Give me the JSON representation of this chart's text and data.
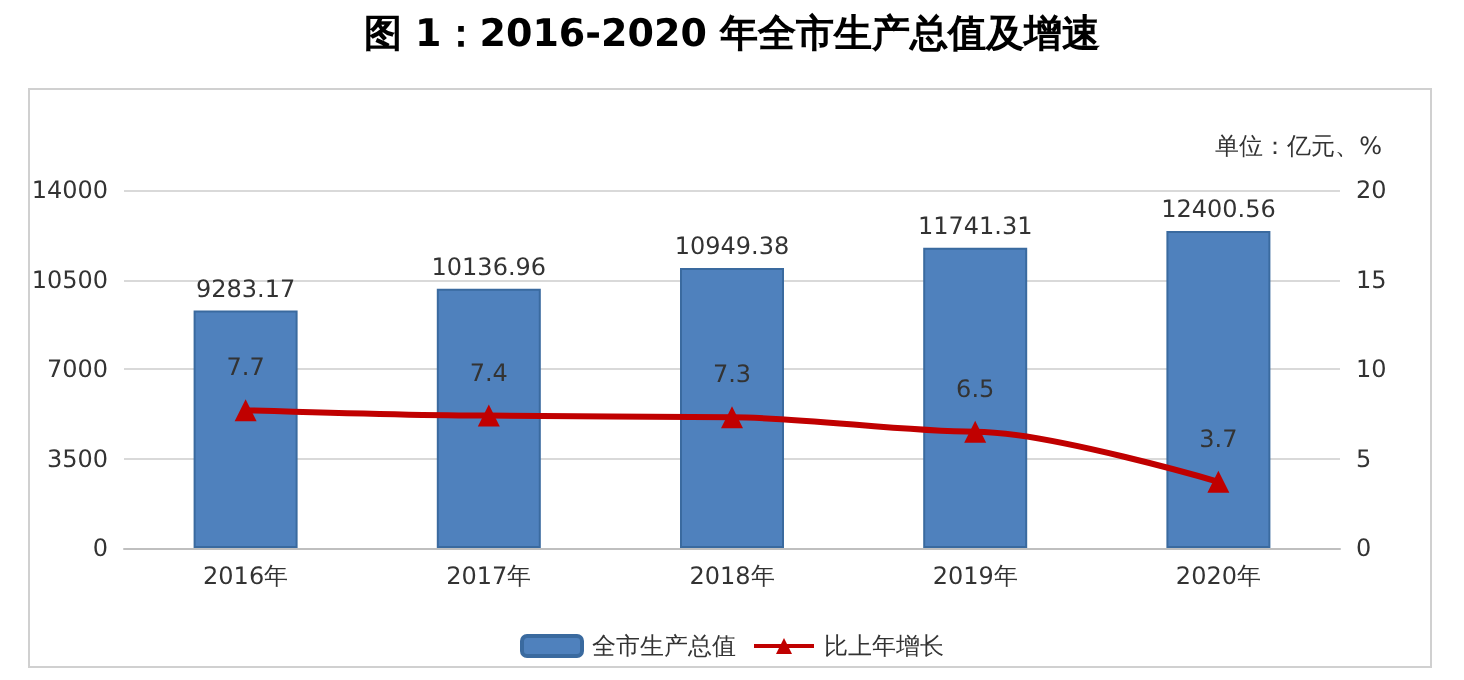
{
  "chart_data": {
    "type": "bar",
    "title": "图 1：2016-2020 年全市生产总值及增速",
    "categories": [
      "2016年",
      "2017年",
      "2018年",
      "2019年",
      "2020年"
    ],
    "series": [
      {
        "name": "全市生产总值",
        "color": "#4f81bd",
        "values": [
          9283.17,
          10136.96,
          10949.38,
          11741.31,
          12400.56
        ]
      },
      {
        "name": "比上年增长",
        "type": "line",
        "axis": "y2",
        "color": "#c00000",
        "values": [
          7.7,
          7.4,
          7.3,
          6.5,
          3.7
        ]
      }
    ],
    "ylim": [
      0,
      14000
    ],
    "yticks": [
      0,
      3500,
      7000,
      10500,
      14000
    ],
    "y2lim": [
      0,
      20
    ],
    "y2ticks": [
      0,
      5,
      10,
      15,
      20
    ],
    "annotations": [
      "单位：亿元、%"
    ],
    "data_labels": true,
    "grid": "y",
    "legend": "bottom",
    "marker": "triangle",
    "line_style": "solid"
  }
}
